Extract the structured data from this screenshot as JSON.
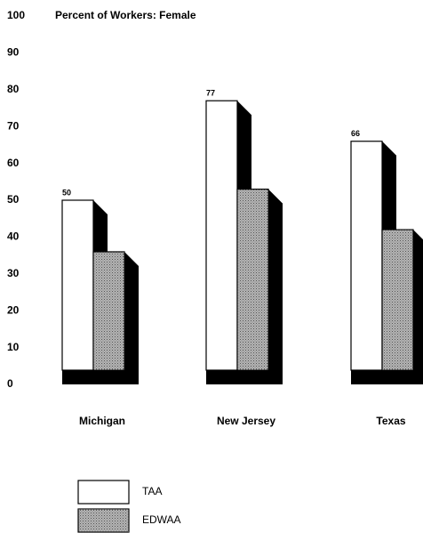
{
  "chart_data": {
    "type": "bar3d",
    "title": "Percent of Workers: Female",
    "categories": [
      "Michigan",
      "New Jersey",
      "Texas"
    ],
    "series": [
      {
        "name": "TAA",
        "color": "#ffffff",
        "values": [
          50,
          77,
          66
        ]
      },
      {
        "name": "EDWAA",
        "color": "#b4b4b4",
        "values": [
          36,
          53,
          42
        ]
      }
    ],
    "ylim": [
      0,
      100
    ],
    "yticks": [
      0,
      10,
      20,
      30,
      40,
      50,
      60,
      70,
      80,
      90,
      100
    ],
    "grid": false,
    "legend": "bottom"
  }
}
